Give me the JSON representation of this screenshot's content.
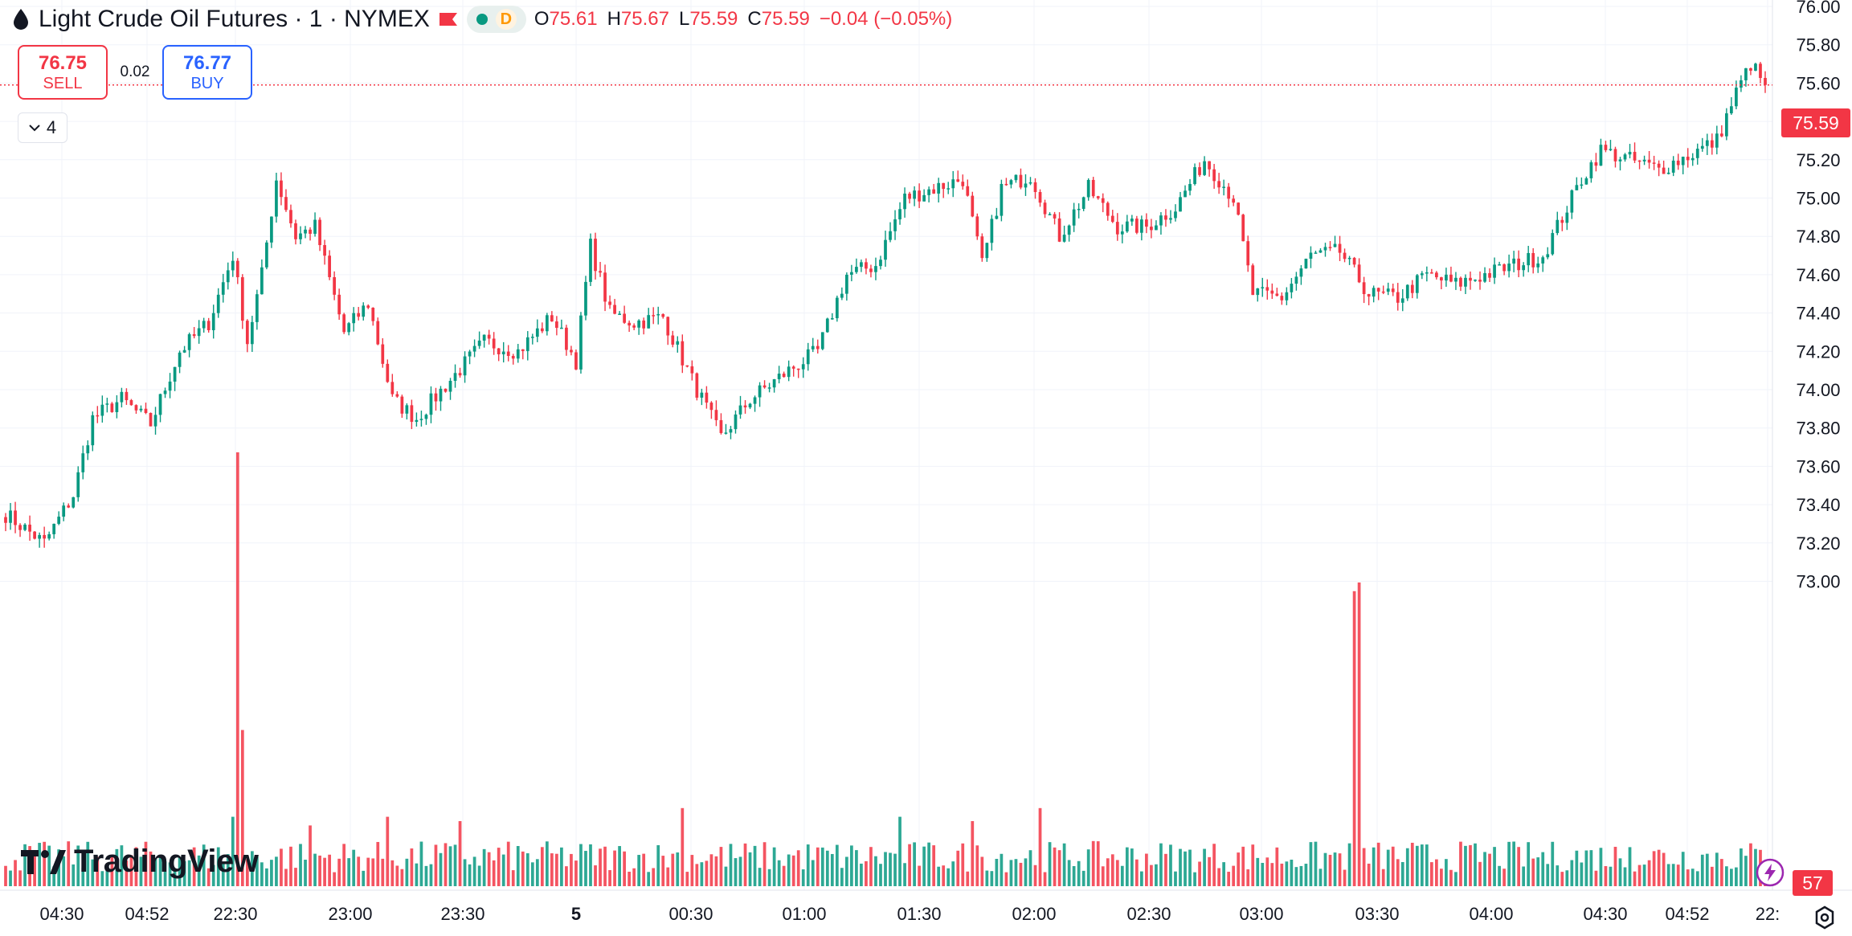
{
  "header": {
    "title": "Light Crude Oil Futures · 1 · NYMEX",
    "badge_d": "D",
    "ohlc": {
      "o_label": "O",
      "o_value": "75.61",
      "h_label": "H",
      "h_value": "75.67",
      "l_label": "L",
      "l_value": "75.59",
      "c_label": "C",
      "c_value": "75.59",
      "change": "−0.04 (−0.05%)"
    },
    "icons": [
      "drop-icon",
      "flag-icon",
      "market-status-dot"
    ]
  },
  "trade": {
    "sell_price": "76.75",
    "sell_label": "SELL",
    "spread": "0.02",
    "buy_price": "76.77",
    "buy_label": "BUY"
  },
  "collapse": {
    "count": "4"
  },
  "logo": {
    "text": "TradingView"
  },
  "current_price_tag": "75.59",
  "volume_tag": "57",
  "colors": {
    "up": "#089981",
    "down": "#f23645",
    "grid": "#f0f3fa",
    "axis_text": "#131722",
    "buy": "#2962ff"
  },
  "chart_data": {
    "type": "candlestick",
    "interval": "1 minute",
    "y_axis": {
      "min": 73.0,
      "max": 76.0,
      "ticks": [
        "76.00",
        "75.80",
        "75.60",
        "75.40",
        "75.20",
        "75.00",
        "74.80",
        "74.60",
        "74.40",
        "74.20",
        "74.00",
        "73.80",
        "73.60",
        "73.40",
        "73.20",
        "73.00"
      ]
    },
    "x_ticks": [
      "04:30",
      "04:52",
      "22:30",
      "23:00",
      "23:30",
      "5",
      "00:30",
      "01:00",
      "01:30",
      "02:00",
      "02:30",
      "03:00",
      "03:30",
      "04:00",
      "04:30",
      "04:52",
      "22:"
    ],
    "last_price": 75.59,
    "price_path": [
      {
        "x": 0,
        "y": 73.35
      },
      {
        "x": 8,
        "y": 73.2
      },
      {
        "x": 14,
        "y": 73.45
      },
      {
        "x": 18,
        "y": 73.85
      },
      {
        "x": 24,
        "y": 73.95
      },
      {
        "x": 30,
        "y": 73.82
      },
      {
        "x": 36,
        "y": 74.2
      },
      {
        "x": 42,
        "y": 74.35
      },
      {
        "x": 47,
        "y": 74.7
      },
      {
        "x": 50,
        "y": 74.25
      },
      {
        "x": 53,
        "y": 74.6
      },
      {
        "x": 56,
        "y": 75.1
      },
      {
        "x": 60,
        "y": 74.8
      },
      {
        "x": 64,
        "y": 74.85
      },
      {
        "x": 70,
        "y": 74.3
      },
      {
        "x": 75,
        "y": 74.45
      },
      {
        "x": 80,
        "y": 73.95
      },
      {
        "x": 85,
        "y": 73.85
      },
      {
        "x": 92,
        "y": 74.05
      },
      {
        "x": 99,
        "y": 74.25
      },
      {
        "x": 106,
        "y": 74.2
      },
      {
        "x": 113,
        "y": 74.38
      },
      {
        "x": 118,
        "y": 74.15
      },
      {
        "x": 121,
        "y": 74.75
      },
      {
        "x": 125,
        "y": 74.4
      },
      {
        "x": 130,
        "y": 74.35
      },
      {
        "x": 136,
        "y": 74.38
      },
      {
        "x": 142,
        "y": 74.05
      },
      {
        "x": 148,
        "y": 73.75
      },
      {
        "x": 154,
        "y": 73.95
      },
      {
        "x": 162,
        "y": 74.1
      },
      {
        "x": 168,
        "y": 74.2
      },
      {
        "x": 174,
        "y": 74.6
      },
      {
        "x": 180,
        "y": 74.65
      },
      {
        "x": 186,
        "y": 75.0
      },
      {
        "x": 192,
        "y": 75.05
      },
      {
        "x": 198,
        "y": 75.1
      },
      {
        "x": 202,
        "y": 74.65
      },
      {
        "x": 206,
        "y": 75.05
      },
      {
        "x": 212,
        "y": 75.12
      },
      {
        "x": 218,
        "y": 74.8
      },
      {
        "x": 224,
        "y": 75.05
      },
      {
        "x": 230,
        "y": 74.85
      },
      {
        "x": 236,
        "y": 74.85
      },
      {
        "x": 242,
        "y": 74.95
      },
      {
        "x": 248,
        "y": 75.2
      },
      {
        "x": 254,
        "y": 75.0
      },
      {
        "x": 258,
        "y": 74.5
      },
      {
        "x": 264,
        "y": 74.48
      },
      {
        "x": 270,
        "y": 74.7
      },
      {
        "x": 276,
        "y": 74.72
      },
      {
        "x": 282,
        "y": 74.5
      },
      {
        "x": 288,
        "y": 74.48
      },
      {
        "x": 294,
        "y": 74.6
      },
      {
        "x": 300,
        "y": 74.55
      },
      {
        "x": 306,
        "y": 74.6
      },
      {
        "x": 312,
        "y": 74.65
      },
      {
        "x": 318,
        "y": 74.7
      },
      {
        "x": 322,
        "y": 74.9
      },
      {
        "x": 326,
        "y": 75.1
      },
      {
        "x": 330,
        "y": 75.25
      },
      {
        "x": 336,
        "y": 75.2
      },
      {
        "x": 342,
        "y": 75.15
      },
      {
        "x": 348,
        "y": 75.22
      },
      {
        "x": 354,
        "y": 75.3
      },
      {
        "x": 358,
        "y": 75.55
      },
      {
        "x": 361,
        "y": 75.7
      },
      {
        "x": 364,
        "y": 75.59
      }
    ],
    "volume_spikes": [
      {
        "x": 48,
        "v": 100
      },
      {
        "x": 49,
        "v": 36
      },
      {
        "x": 47,
        "v": 16
      },
      {
        "x": 63,
        "v": 14
      },
      {
        "x": 79,
        "v": 16
      },
      {
        "x": 94,
        "v": 15
      },
      {
        "x": 140,
        "v": 18
      },
      {
        "x": 185,
        "v": 16
      },
      {
        "x": 200,
        "v": 15
      },
      {
        "x": 214,
        "v": 18
      },
      {
        "x": 279,
        "v": 68
      },
      {
        "x": 280,
        "v": 70
      },
      {
        "x": 336,
        "v": 9
      }
    ],
    "bar_count": 365,
    "volume_baseline": 8,
    "grid": true
  }
}
